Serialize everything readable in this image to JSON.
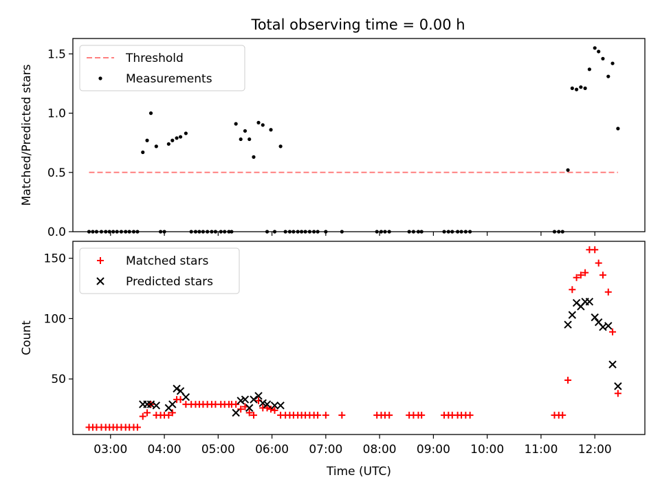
{
  "title": "Total observing time = 0.00 h",
  "chart_data": [
    {
      "type": "scatter",
      "ylabel": "Matched/Predicted stars",
      "xlabel": "",
      "xlim": [
        2.3,
        12.93
      ],
      "ylim": [
        0,
        1.63
      ],
      "yticks": [
        {
          "value": 0.0,
          "label": "0.0"
        },
        {
          "value": 0.5,
          "label": "0.5"
        },
        {
          "value": 1.0,
          "label": "1.0"
        },
        {
          "value": 1.5,
          "label": "1.5"
        }
      ],
      "legend": {
        "position": "top-left",
        "entries": [
          {
            "label": "Threshold",
            "marker": "dashed-line",
            "color": "#ff7f7f"
          },
          {
            "label": "Measurements",
            "marker": "dot",
            "color": "#000000"
          }
        ]
      },
      "threshold": {
        "y": 0.5,
        "x": [
          2.6,
          12.43
        ],
        "color": "#ff7f7f"
      },
      "series": [
        {
          "name": "Measurements",
          "color": "#000000",
          "points": [
            [
              2.6,
              0
            ],
            [
              2.67,
              0
            ],
            [
              2.74,
              0
            ],
            [
              2.83,
              0
            ],
            [
              2.91,
              0
            ],
            [
              2.98,
              0
            ],
            [
              3.05,
              0
            ],
            [
              3.12,
              0
            ],
            [
              3.2,
              0
            ],
            [
              3.28,
              0
            ],
            [
              3.35,
              0
            ],
            [
              3.43,
              0
            ],
            [
              3.5,
              0
            ],
            [
              3.6,
              0.67
            ],
            [
              3.68,
              0.77
            ],
            [
              3.75,
              1.0
            ],
            [
              3.85,
              0.72
            ],
            [
              3.93,
              0
            ],
            [
              4.0,
              0
            ],
            [
              4.08,
              0.74
            ],
            [
              4.15,
              0.77
            ],
            [
              4.23,
              0.79
            ],
            [
              4.3,
              0.8
            ],
            [
              4.4,
              0.83
            ],
            [
              4.5,
              0
            ],
            [
              4.58,
              0
            ],
            [
              4.65,
              0
            ],
            [
              4.72,
              0
            ],
            [
              4.8,
              0
            ],
            [
              4.88,
              0
            ],
            [
              4.95,
              0
            ],
            [
              5.05,
              0
            ],
            [
              5.12,
              0
            ],
            [
              5.2,
              0
            ],
            [
              5.25,
              0
            ],
            [
              5.33,
              0.91
            ],
            [
              5.42,
              0.78
            ],
            [
              5.5,
              0.85
            ],
            [
              5.58,
              0.78
            ],
            [
              5.66,
              0.63
            ],
            [
              5.75,
              0.92
            ],
            [
              5.83,
              0.9
            ],
            [
              5.91,
              0
            ],
            [
              5.98,
              0.86
            ],
            [
              6.05,
              0
            ],
            [
              6.16,
              0.72
            ],
            [
              6.25,
              0
            ],
            [
              6.33,
              0
            ],
            [
              6.4,
              0
            ],
            [
              6.48,
              0
            ],
            [
              6.55,
              0
            ],
            [
              6.62,
              0
            ],
            [
              6.7,
              0
            ],
            [
              6.78,
              0
            ],
            [
              6.85,
              0
            ],
            [
              7.0,
              0
            ],
            [
              7.3,
              0
            ],
            [
              7.95,
              0
            ],
            [
              8.03,
              0
            ],
            [
              8.1,
              0
            ],
            [
              8.18,
              0
            ],
            [
              8.55,
              0
            ],
            [
              8.63,
              0
            ],
            [
              8.72,
              0
            ],
            [
              8.78,
              0
            ],
            [
              9.2,
              0
            ],
            [
              9.28,
              0
            ],
            [
              9.35,
              0
            ],
            [
              9.45,
              0
            ],
            [
              9.52,
              0
            ],
            [
              9.6,
              0
            ],
            [
              9.68,
              0
            ],
            [
              11.25,
              0
            ],
            [
              11.33,
              0
            ],
            [
              11.4,
              0
            ],
            [
              11.5,
              0.52
            ],
            [
              11.58,
              1.21
            ],
            [
              11.66,
              1.2
            ],
            [
              11.74,
              1.22
            ],
            [
              11.82,
              1.21
            ],
            [
              11.9,
              1.37
            ],
            [
              12.0,
              1.55
            ],
            [
              12.07,
              1.52
            ],
            [
              12.15,
              1.46
            ],
            [
              12.25,
              1.31
            ],
            [
              12.33,
              1.42
            ],
            [
              12.43,
              0.87
            ]
          ]
        }
      ]
    },
    {
      "type": "scatter",
      "ylabel": "Count",
      "xlabel": "Time (UTC)",
      "xlim": [
        2.3,
        12.93
      ],
      "ylim": [
        4,
        164
      ],
      "yticks": [
        {
          "value": 50,
          "label": "50"
        },
        {
          "value": 100,
          "label": "100"
        },
        {
          "value": 150,
          "label": "150"
        }
      ],
      "xticks": [
        {
          "value": 3,
          "label": "03:00"
        },
        {
          "value": 4,
          "label": "04:00"
        },
        {
          "value": 5,
          "label": "05:00"
        },
        {
          "value": 6,
          "label": "06:00"
        },
        {
          "value": 7,
          "label": "07:00"
        },
        {
          "value": 8,
          "label": "08:00"
        },
        {
          "value": 9,
          "label": "09:00"
        },
        {
          "value": 10,
          "label": "10:00"
        },
        {
          "value": 11,
          "label": "11:00"
        },
        {
          "value": 12,
          "label": "12:00"
        }
      ],
      "legend": {
        "position": "top-left",
        "entries": [
          {
            "label": "Matched stars",
            "marker": "plus",
            "color": "#ff0000"
          },
          {
            "label": "Predicted stars",
            "marker": "x",
            "color": "#000000"
          }
        ]
      },
      "series": [
        {
          "name": "Matched stars",
          "marker": "plus",
          "color": "#ff0000",
          "points": [
            [
              2.6,
              10
            ],
            [
              2.67,
              10
            ],
            [
              2.74,
              10
            ],
            [
              2.83,
              10
            ],
            [
              2.91,
              10
            ],
            [
              2.98,
              10
            ],
            [
              3.05,
              10
            ],
            [
              3.12,
              10
            ],
            [
              3.2,
              10
            ],
            [
              3.28,
              10
            ],
            [
              3.35,
              10
            ],
            [
              3.43,
              10
            ],
            [
              3.5,
              10
            ],
            [
              3.6,
              19
            ],
            [
              3.68,
              22
            ],
            [
              3.75,
              29
            ],
            [
              3.85,
              20
            ],
            [
              3.93,
              20
            ],
            [
              4.0,
              20
            ],
            [
              4.08,
              20
            ],
            [
              4.15,
              22
            ],
            [
              4.23,
              33
            ],
            [
              4.3,
              33
            ],
            [
              4.4,
              29
            ],
            [
              4.5,
              29
            ],
            [
              4.58,
              29
            ],
            [
              4.65,
              29
            ],
            [
              4.72,
              29
            ],
            [
              4.8,
              29
            ],
            [
              4.88,
              29
            ],
            [
              4.95,
              29
            ],
            [
              5.05,
              29
            ],
            [
              5.12,
              29
            ],
            [
              5.2,
              29
            ],
            [
              5.25,
              29
            ],
            [
              5.33,
              29
            ],
            [
              5.42,
              25
            ],
            [
              5.5,
              27
            ],
            [
              5.58,
              22
            ],
            [
              5.66,
              20
            ],
            [
              5.75,
              32
            ],
            [
              5.83,
              26
            ],
            [
              5.91,
              26
            ],
            [
              5.98,
              25
            ],
            [
              6.05,
              24
            ],
            [
              6.16,
              20
            ],
            [
              6.25,
              20
            ],
            [
              6.33,
              20
            ],
            [
              6.4,
              20
            ],
            [
              6.48,
              20
            ],
            [
              6.55,
              20
            ],
            [
              6.62,
              20
            ],
            [
              6.7,
              20
            ],
            [
              6.78,
              20
            ],
            [
              6.85,
              20
            ],
            [
              7.0,
              20
            ],
            [
              7.3,
              20
            ],
            [
              7.95,
              20
            ],
            [
              8.03,
              20
            ],
            [
              8.1,
              20
            ],
            [
              8.18,
              20
            ],
            [
              8.55,
              20
            ],
            [
              8.63,
              20
            ],
            [
              8.72,
              20
            ],
            [
              8.78,
              20
            ],
            [
              9.2,
              20
            ],
            [
              9.28,
              20
            ],
            [
              9.35,
              20
            ],
            [
              9.45,
              20
            ],
            [
              9.52,
              20
            ],
            [
              9.6,
              20
            ],
            [
              9.68,
              20
            ],
            [
              11.25,
              20
            ],
            [
              11.33,
              20
            ],
            [
              11.4,
              20
            ],
            [
              11.5,
              49
            ],
            [
              11.58,
              124
            ],
            [
              11.66,
              134
            ],
            [
              11.74,
              136
            ],
            [
              11.82,
              138
            ],
            [
              11.9,
              157
            ],
            [
              12.0,
              157
            ],
            [
              12.07,
              146
            ],
            [
              12.15,
              136
            ],
            [
              12.25,
              122
            ],
            [
              12.33,
              89
            ],
            [
              12.43,
              38
            ]
          ]
        },
        {
          "name": "Predicted stars",
          "marker": "x",
          "color": "#000000",
          "points": [
            [
              3.6,
              29
            ],
            [
              3.68,
              29
            ],
            [
              3.75,
              29
            ],
            [
              3.85,
              28
            ],
            [
              4.08,
              26
            ],
            [
              4.15,
              29
            ],
            [
              4.23,
              42
            ],
            [
              4.3,
              40
            ],
            [
              4.4,
              35
            ],
            [
              5.33,
              22
            ],
            [
              5.42,
              32
            ],
            [
              5.5,
              33
            ],
            [
              5.58,
              26
            ],
            [
              5.66,
              33
            ],
            [
              5.75,
              36
            ],
            [
              5.83,
              30
            ],
            [
              5.91,
              29
            ],
            [
              6.05,
              28
            ],
            [
              6.16,
              28
            ],
            [
              11.5,
              95
            ],
            [
              11.58,
              103
            ],
            [
              11.66,
              113
            ],
            [
              11.74,
              110
            ],
            [
              11.82,
              114
            ],
            [
              11.9,
              114
            ],
            [
              12.0,
              101
            ],
            [
              12.07,
              97
            ],
            [
              12.15,
              93
            ],
            [
              12.25,
              94
            ],
            [
              12.33,
              62
            ],
            [
              12.43,
              44
            ]
          ]
        }
      ]
    }
  ]
}
